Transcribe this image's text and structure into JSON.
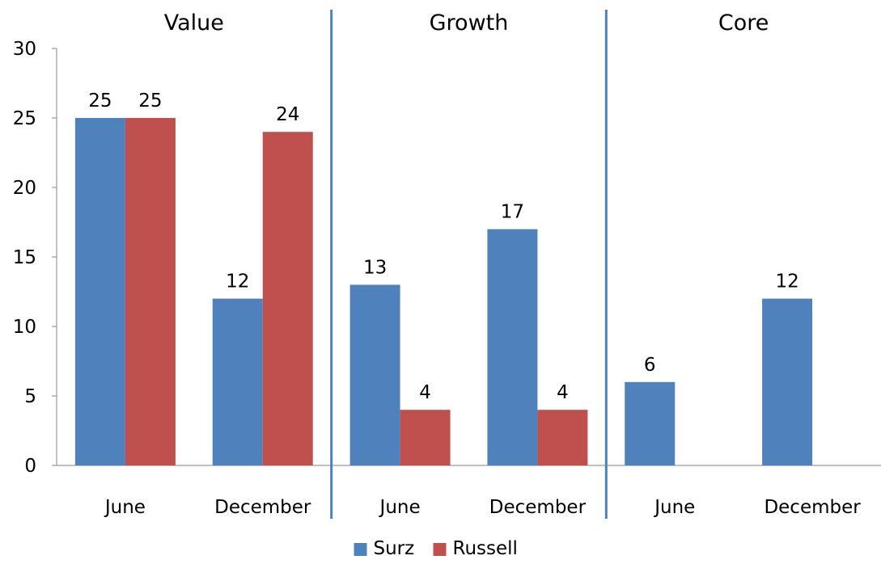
{
  "chart_data": {
    "type": "bar",
    "ylim": [
      0,
      30
    ],
    "yticks": [
      "0",
      "5",
      "10",
      "15",
      "20",
      "25",
      "30"
    ],
    "groups": [
      {
        "title": "Value",
        "categories": [
          {
            "label": "June",
            "values": [
              25,
              25
            ]
          },
          {
            "label": "December",
            "values": [
              12,
              24
            ]
          }
        ]
      },
      {
        "title": "Growth",
        "categories": [
          {
            "label": "June",
            "values": [
              13,
              4
            ]
          },
          {
            "label": "December",
            "values": [
              17,
              4
            ]
          }
        ]
      },
      {
        "title": "Core",
        "categories": [
          {
            "label": "June",
            "values": [
              6,
              null
            ]
          },
          {
            "label": "December",
            "values": [
              12,
              null
            ]
          }
        ]
      }
    ],
    "series": [
      {
        "name": "Surz",
        "color": "#4F81BD"
      },
      {
        "name": "Russell",
        "color": "#C0504D"
      }
    ],
    "divider_color": "#4F81BD",
    "grid": false,
    "legend_position": "bottom"
  }
}
